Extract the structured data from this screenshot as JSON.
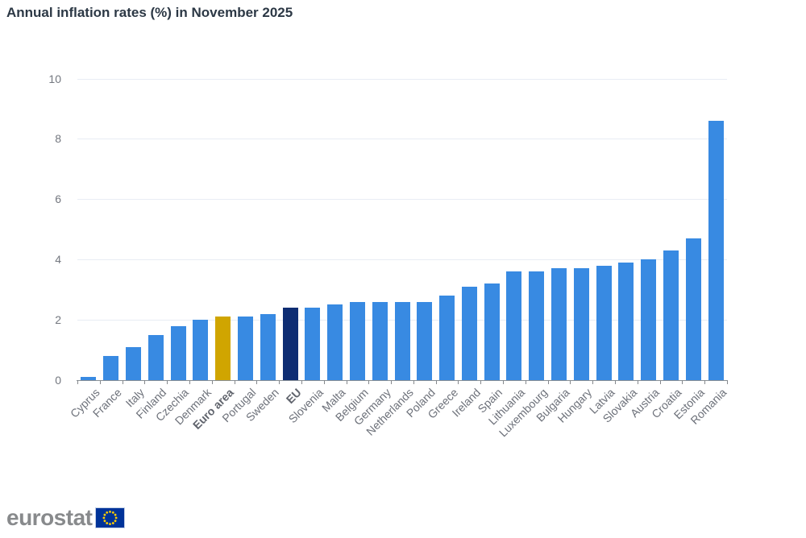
{
  "title": "Annual inflation rates (%) in November 2025",
  "chart_data": {
    "type": "bar",
    "title": "Annual inflation rates (%) in November 2025",
    "xlabel": "",
    "ylabel": "",
    "ylim": [
      0,
      10
    ],
    "yticks": [
      0,
      2,
      4,
      6,
      8,
      10
    ],
    "grid": true,
    "legend": false,
    "categories": [
      "Cyprus",
      "France",
      "Italy",
      "Finland",
      "Czechia",
      "Denmark",
      "Euro area",
      "Portugal",
      "Sweden",
      "EU",
      "Slovenia",
      "Malta",
      "Belgium",
      "Germany",
      "Netherlands",
      "Poland",
      "Greece",
      "Ireland",
      "Spain",
      "Lithuania",
      "Luxembourg",
      "Bulgaria",
      "Hungary",
      "Latvia",
      "Slovakia",
      "Austria",
      "Croatia",
      "Estonia",
      "Romania"
    ],
    "values": [
      0.1,
      0.8,
      1.1,
      1.5,
      1.8,
      2.0,
      2.1,
      2.1,
      2.2,
      2.4,
      2.4,
      2.5,
      2.6,
      2.6,
      2.6,
      2.6,
      2.8,
      3.1,
      3.2,
      3.6,
      3.6,
      3.7,
      3.7,
      3.8,
      3.9,
      4.0,
      4.3,
      4.7,
      8.6
    ],
    "bold_categories": [
      "Euro area",
      "EU"
    ],
    "colors": {
      "default": "#388ae2",
      "Euro area": "#d0a500",
      "EU": "#0e2d73"
    }
  },
  "footer": {
    "logo_text": "eurostat",
    "flag_icon": "eu-flag-icon",
    "flag_bg": "#003399",
    "flag_star": "#ffcc00"
  }
}
